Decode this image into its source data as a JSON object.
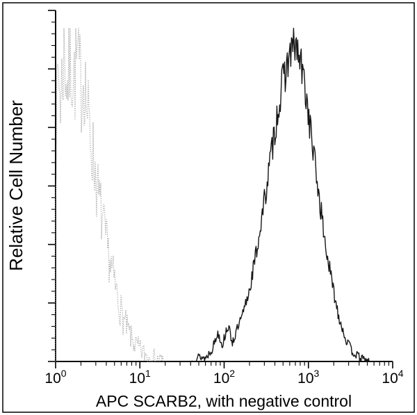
{
  "chart_data": {
    "type": "histogram",
    "title": "",
    "xlabel": "APC SCARB2, with negative control",
    "ylabel": "Relative Cell Number",
    "x_scale": "log10",
    "x_range_exponents": [
      0,
      4
    ],
    "x_tick_exponents": [
      0,
      1,
      2,
      3,
      4
    ],
    "y_axis_ticks": "unlabeled relative scale",
    "grid": "off",
    "legend": "none",
    "background_color": "#ffffff",
    "frame_color": "#000000",
    "series": [
      {
        "name": "negative control",
        "color": "#a8a8a8",
        "line_style": "dotted",
        "peak_log10_x": 0.2,
        "points": [
          [
            0.0,
            0.6
          ],
          [
            0.03,
            0.9
          ],
          [
            0.06,
            0.8
          ],
          [
            0.1,
            0.95
          ],
          [
            0.14,
            0.85
          ],
          [
            0.18,
            0.92
          ],
          [
            0.22,
            0.86
          ],
          [
            0.26,
            0.93
          ],
          [
            0.3,
            0.84
          ],
          [
            0.34,
            0.88
          ],
          [
            0.38,
            0.75
          ],
          [
            0.42,
            0.68
          ],
          [
            0.46,
            0.6
          ],
          [
            0.5,
            0.52
          ],
          [
            0.55,
            0.44
          ],
          [
            0.6,
            0.36
          ],
          [
            0.65,
            0.3
          ],
          [
            0.7,
            0.24
          ],
          [
            0.75,
            0.18
          ],
          [
            0.8,
            0.13
          ],
          [
            0.85,
            0.1
          ],
          [
            0.9,
            0.07
          ],
          [
            0.95,
            0.05
          ],
          [
            1.0,
            0.035
          ],
          [
            1.1,
            0.015
          ],
          [
            1.2,
            0.005
          ],
          [
            1.28,
            0.0
          ]
        ]
      },
      {
        "name": "APC SCARB2",
        "color": "#161616",
        "line_style": "solid",
        "peak_log10_x": 2.84,
        "points": [
          [
            1.62,
            0.0
          ],
          [
            1.7,
            0.015
          ],
          [
            1.78,
            0.01
          ],
          [
            1.86,
            0.04
          ],
          [
            1.93,
            0.09
          ],
          [
            1.98,
            0.05
          ],
          [
            2.04,
            0.11
          ],
          [
            2.1,
            0.06
          ],
          [
            2.16,
            0.1
          ],
          [
            2.22,
            0.14
          ],
          [
            2.3,
            0.22
          ],
          [
            2.38,
            0.33
          ],
          [
            2.46,
            0.46
          ],
          [
            2.54,
            0.6
          ],
          [
            2.62,
            0.74
          ],
          [
            2.7,
            0.86
          ],
          [
            2.78,
            0.94
          ],
          [
            2.84,
            0.97
          ],
          [
            2.9,
            0.92
          ],
          [
            2.96,
            0.84
          ],
          [
            3.02,
            0.72
          ],
          [
            3.08,
            0.6
          ],
          [
            3.14,
            0.48
          ],
          [
            3.2,
            0.36
          ],
          [
            3.28,
            0.24
          ],
          [
            3.36,
            0.14
          ],
          [
            3.44,
            0.07
          ],
          [
            3.52,
            0.03
          ],
          [
            3.62,
            0.01
          ],
          [
            3.72,
            0.0
          ]
        ]
      }
    ]
  }
}
